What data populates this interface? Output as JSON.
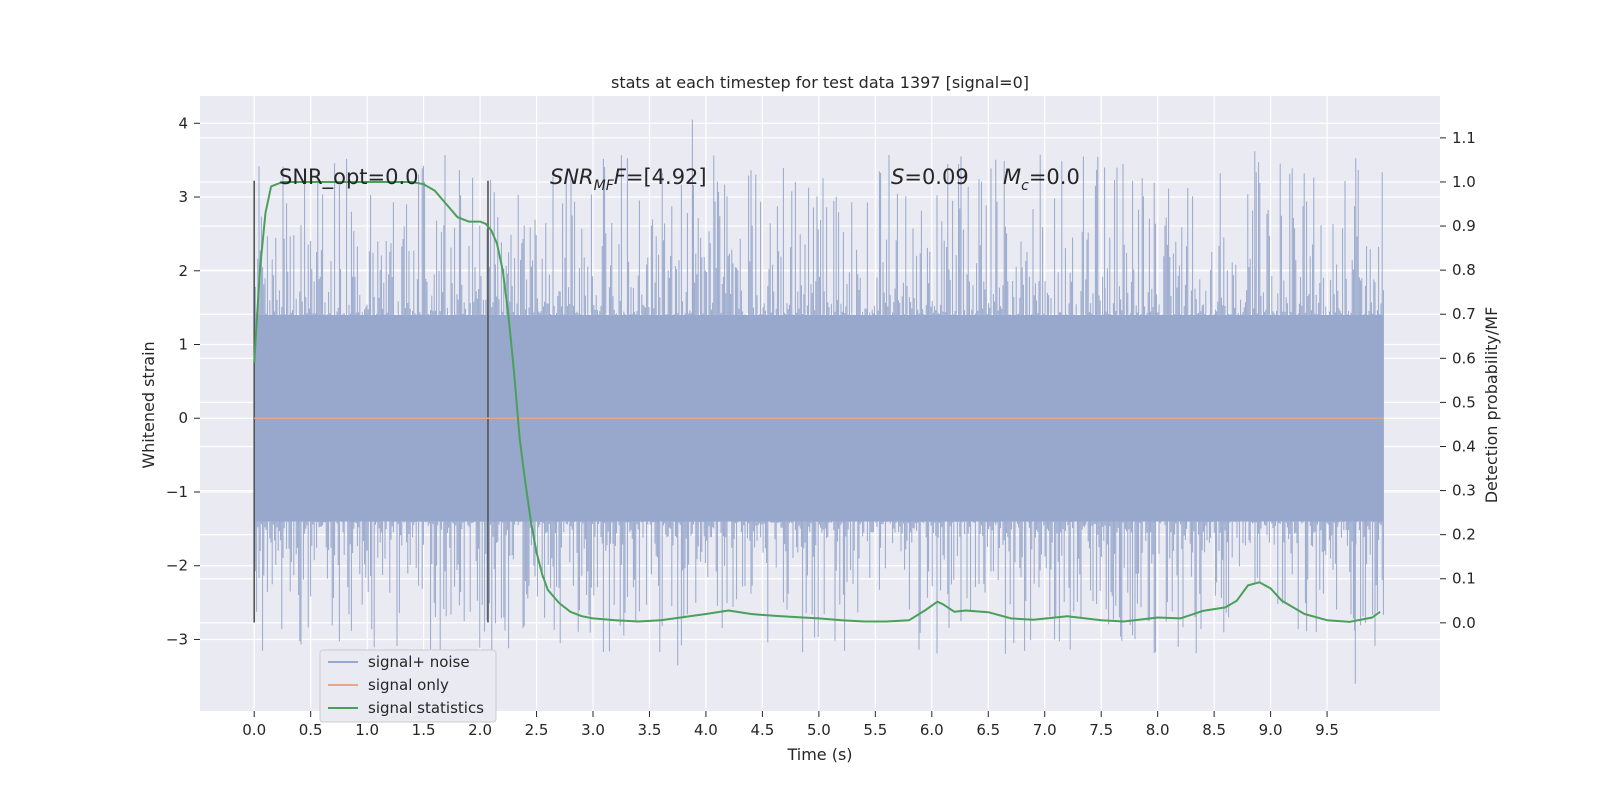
{
  "chart_data": {
    "type": "line",
    "title": "stats at each timestep for test data 1397 [signal=0]",
    "xlabel": "Time (s)",
    "ylabel": "Whitened strain",
    "y2label": "Detection probability/MF",
    "xlim": [
      -0.48,
      10.5
    ],
    "ylim": [
      -3.97,
      4.37
    ],
    "y2lim": [
      -0.2,
      1.195
    ],
    "xticks": [
      "0.0",
      "0.5",
      "1.0",
      "1.5",
      "2.0",
      "2.5",
      "3.0",
      "3.5",
      "4.0",
      "4.5",
      "5.0",
      "5.5",
      "6.0",
      "6.5",
      "7.0",
      "7.5",
      "8.0",
      "8.5",
      "9.0",
      "9.5"
    ],
    "yticks": [
      "4",
      "3",
      "2",
      "1",
      "0",
      "−1",
      "−2",
      "−3"
    ],
    "y2ticks": [
      "1.1",
      "1.0",
      "0.9",
      "0.8",
      "0.7",
      "0.6",
      "0.5",
      "0.4",
      "0.3",
      "0.2",
      "0.1",
      "0.0"
    ],
    "grid": true,
    "legend_position": "lower-left",
    "annotations": {
      "snr_opt": "SNR_opt=0.0",
      "snr_mf_main": "SNR",
      "snr_mf_sub": "MF",
      "snr_mf_value": "=[4.92]",
      "s_symbol": "S",
      "s_value": "=0.09",
      "mc_symbol": "M",
      "mc_sub": "c",
      "mc_value": "=0.0"
    },
    "vlines": {
      "x": [
        0.0,
        2.07
      ],
      "ymin": -2.77,
      "ymax": 3.22
    },
    "series": [
      {
        "name": "signal+ noise",
        "color": "#98a8cc",
        "axis": "left",
        "x_range": [
          0.0,
          10.0
        ],
        "envelope_abs": 1.4,
        "min": -3.6,
        "max": 4.05
      },
      {
        "name": "signal only",
        "color": "#e7a58a",
        "axis": "left",
        "x": [
          0.0,
          10.0
        ],
        "y": [
          0.0,
          0.0
        ]
      },
      {
        "name": "signal statistics",
        "color": "#4aa05a",
        "axis": "right",
        "x": [
          0.0,
          0.05,
          0.1,
          0.15,
          0.25,
          0.4,
          0.6,
          0.8,
          1.0,
          1.2,
          1.4,
          1.5,
          1.6,
          1.7,
          1.8,
          1.9,
          2.0,
          2.05,
          2.1,
          2.15,
          2.2,
          2.25,
          2.3,
          2.35,
          2.4,
          2.45,
          2.5,
          2.55,
          2.6,
          2.7,
          2.8,
          2.9,
          3.0,
          3.2,
          3.4,
          3.6,
          3.8,
          4.0,
          4.2,
          4.4,
          4.6,
          4.8,
          5.0,
          5.2,
          5.4,
          5.6,
          5.8,
          5.95,
          6.05,
          6.1,
          6.2,
          6.3,
          6.5,
          6.7,
          6.9,
          7.2,
          7.5,
          7.7,
          8.0,
          8.2,
          8.4,
          8.6,
          8.7,
          8.8,
          8.9,
          9.0,
          9.1,
          9.3,
          9.5,
          9.7,
          9.9,
          9.97
        ],
        "y": [
          0.59,
          0.8,
          0.93,
          0.99,
          1.0,
          1.0,
          1.0,
          1.0,
          1.0,
          1.0,
          1.0,
          0.995,
          0.98,
          0.95,
          0.92,
          0.91,
          0.91,
          0.905,
          0.89,
          0.86,
          0.8,
          0.7,
          0.57,
          0.42,
          0.32,
          0.23,
          0.16,
          0.11,
          0.075,
          0.045,
          0.025,
          0.015,
          0.01,
          0.006,
          0.003,
          0.006,
          0.013,
          0.02,
          0.028,
          0.02,
          0.016,
          0.013,
          0.01,
          0.006,
          0.003,
          0.003,
          0.006,
          0.03,
          0.048,
          0.042,
          0.025,
          0.028,
          0.024,
          0.01,
          0.007,
          0.015,
          0.006,
          0.003,
          0.012,
          0.01,
          0.027,
          0.035,
          0.05,
          0.085,
          0.092,
          0.078,
          0.05,
          0.02,
          0.006,
          0.002,
          0.012,
          0.025
        ]
      }
    ]
  }
}
